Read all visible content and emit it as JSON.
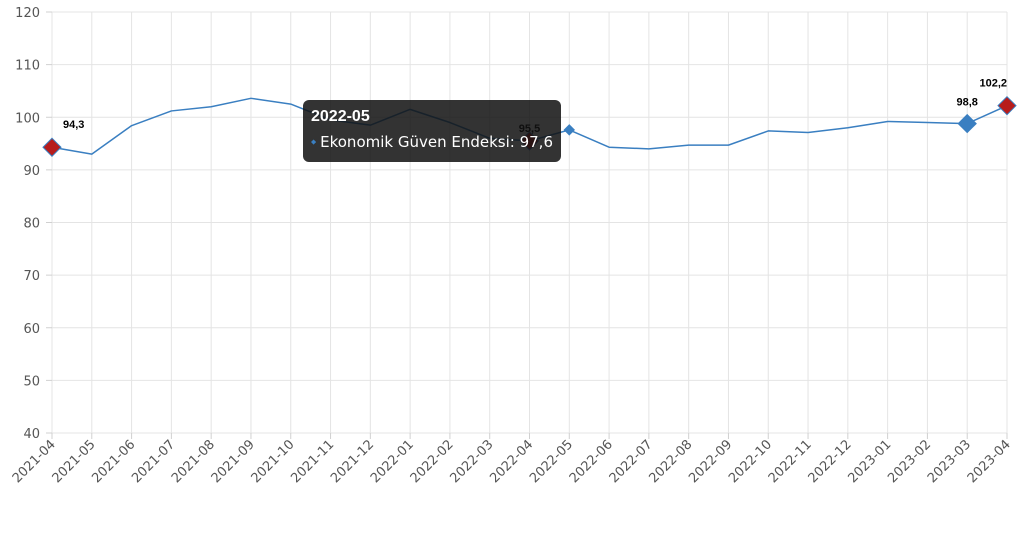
{
  "chart_data": {
    "type": "line",
    "title": "",
    "xlabel": "",
    "ylabel": "",
    "ylim": [
      40,
      120
    ],
    "yticks": [
      40,
      50,
      60,
      70,
      80,
      90,
      100,
      110,
      120
    ],
    "grid": true,
    "categories": [
      "2021-04",
      "2021-05",
      "2021-06",
      "2021-07",
      "2021-08",
      "2021-09",
      "2021-10",
      "2021-11",
      "2021-12",
      "2022-01",
      "2022-02",
      "2022-03",
      "2022-04",
      "2022-05",
      "2022-06",
      "2022-07",
      "2022-08",
      "2022-09",
      "2022-10",
      "2022-11",
      "2022-12",
      "2023-01",
      "2023-02",
      "2023-03",
      "2023-04"
    ],
    "series": [
      {
        "name": "Ekonomik Güven Endeksi",
        "color": "#3a7fc1",
        "values": [
          94.3,
          93.0,
          98.4,
          101.2,
          102.0,
          103.6,
          102.5,
          99.5,
          98.5,
          101.5,
          99.0,
          96.0,
          95.5,
          97.6,
          94.3,
          94.0,
          94.7,
          94.7,
          97.4,
          97.1,
          98.0,
          99.2,
          99.0,
          98.8,
          102.2
        ]
      }
    ],
    "data_labels": [
      {
        "category": "2021-04",
        "text": "94,3",
        "marker_color": "#b71c1c"
      },
      {
        "category": "2022-04",
        "text": "95,5",
        "marker_color": "#b71c1c"
      },
      {
        "category": "2023-03",
        "text": "98,8",
        "marker_color": "#3a7fc1"
      },
      {
        "category": "2023-04",
        "text": "102,2",
        "marker_color": "#b71c1c"
      }
    ],
    "tooltip": {
      "category": "2022-05",
      "title": "2022-05",
      "series_name": "Ekonomik Güven Endeksi",
      "value_text": "97,6",
      "icon": "diamond-icon"
    }
  }
}
